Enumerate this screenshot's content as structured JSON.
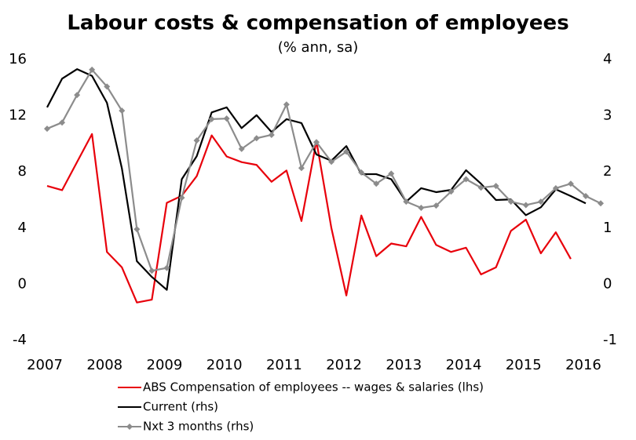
{
  "chart_data": {
    "type": "line",
    "title": "Labour costs & compensation of employees",
    "subtitle": "(% ann, sa)",
    "xlim": [
      2007,
      2016.42
    ],
    "xticks": [
      2007,
      2008,
      2009,
      2010,
      2011,
      2012,
      2013,
      2014,
      2015,
      2016
    ],
    "ylim": [
      -4,
      16
    ],
    "yticks": [
      -4,
      0,
      4,
      8,
      12,
      16
    ],
    "y2lim": [
      -1,
      4
    ],
    "y2ticks": [
      -1,
      0,
      1,
      2,
      3,
      4
    ],
    "series": [
      {
        "name": "ABS Compensation of employees -- wages & salaries (lhs)",
        "color": "#e8000b",
        "axis": "y",
        "x": [
          2007,
          2007.25,
          2007.5,
          2007.75,
          2008,
          2008.25,
          2008.5,
          2008.75,
          2009,
          2009.25,
          2009.5,
          2009.75,
          2010,
          2010.25,
          2010.5,
          2010.75,
          2011,
          2011.25,
          2011.5,
          2011.75,
          2012,
          2012.25,
          2012.5,
          2012.75,
          2013,
          2013.25,
          2013.5,
          2013.75,
          2014,
          2014.25,
          2014.5,
          2014.75,
          2015,
          2015.25,
          2015.5,
          2015.75
        ],
        "values": [
          7.0,
          6.7,
          8.7,
          10.7,
          2.3,
          1.2,
          -1.3,
          -1.1,
          5.8,
          6.3,
          7.7,
          10.6,
          9.1,
          8.7,
          8.5,
          7.3,
          8.1,
          4.5,
          10.2,
          4.0,
          -0.8,
          4.9,
          2.0,
          2.9,
          2.7,
          4.8,
          2.8,
          2.3,
          2.6,
          0.7,
          1.2,
          3.8,
          4.6,
          2.2,
          3.7,
          1.8
        ]
      },
      {
        "name": "Current (rhs)",
        "color": "#000000",
        "axis": "y2",
        "x": [
          2007,
          2007.25,
          2007.5,
          2007.75,
          2008,
          2008.25,
          2008.5,
          2008.75,
          2009,
          2009.25,
          2009.5,
          2009.75,
          2010,
          2010.25,
          2010.5,
          2010.75,
          2011,
          2011.25,
          2011.5,
          2011.75,
          2012,
          2012.25,
          2012.5,
          2012.75,
          2013,
          2013.25,
          2013.5,
          2013.75,
          2014,
          2014.25,
          2014.5,
          2014.75,
          2015,
          2015.25,
          2015.5,
          2015.75,
          2016
        ],
        "values": [
          3.15,
          3.66,
          3.83,
          3.71,
          3.23,
          2.06,
          0.41,
          0.13,
          -0.1,
          1.87,
          2.28,
          3.06,
          3.15,
          2.78,
          3.01,
          2.71,
          2.94,
          2.87,
          2.31,
          2.2,
          2.46,
          1.96,
          1.96,
          1.87,
          1.47,
          1.71,
          1.64,
          1.68,
          2.03,
          1.79,
          1.5,
          1.51,
          1.23,
          1.37,
          1.69,
          1.57,
          1.44
        ]
      },
      {
        "name": "Nxt 3 months (rhs)",
        "color": "#8c8c8c",
        "axis": "y2",
        "marker": "diamond",
        "x": [
          2007,
          2007.25,
          2007.5,
          2007.75,
          2008,
          2008.25,
          2008.5,
          2008.75,
          2009,
          2009.25,
          2009.5,
          2009.75,
          2010,
          2010.25,
          2010.5,
          2010.75,
          2011,
          2011.25,
          2011.5,
          2011.75,
          2012,
          2012.25,
          2012.5,
          2012.75,
          2013,
          2013.25,
          2013.5,
          2013.75,
          2014,
          2014.25,
          2014.5,
          2014.75,
          2015,
          2015.25,
          2015.5,
          2015.75,
          2016,
          2016.25
        ],
        "values": [
          2.77,
          2.88,
          3.37,
          3.82,
          3.52,
          3.09,
          0.98,
          0.24,
          0.29,
          1.54,
          2.56,
          2.94,
          2.95,
          2.41,
          2.6,
          2.66,
          3.2,
          2.07,
          2.53,
          2.18,
          2.36,
          1.99,
          1.79,
          1.97,
          1.47,
          1.36,
          1.4,
          1.65,
          1.87,
          1.72,
          1.75,
          1.47,
          1.41,
          1.47,
          1.71,
          1.79,
          1.57,
          1.44
        ]
      }
    ]
  }
}
